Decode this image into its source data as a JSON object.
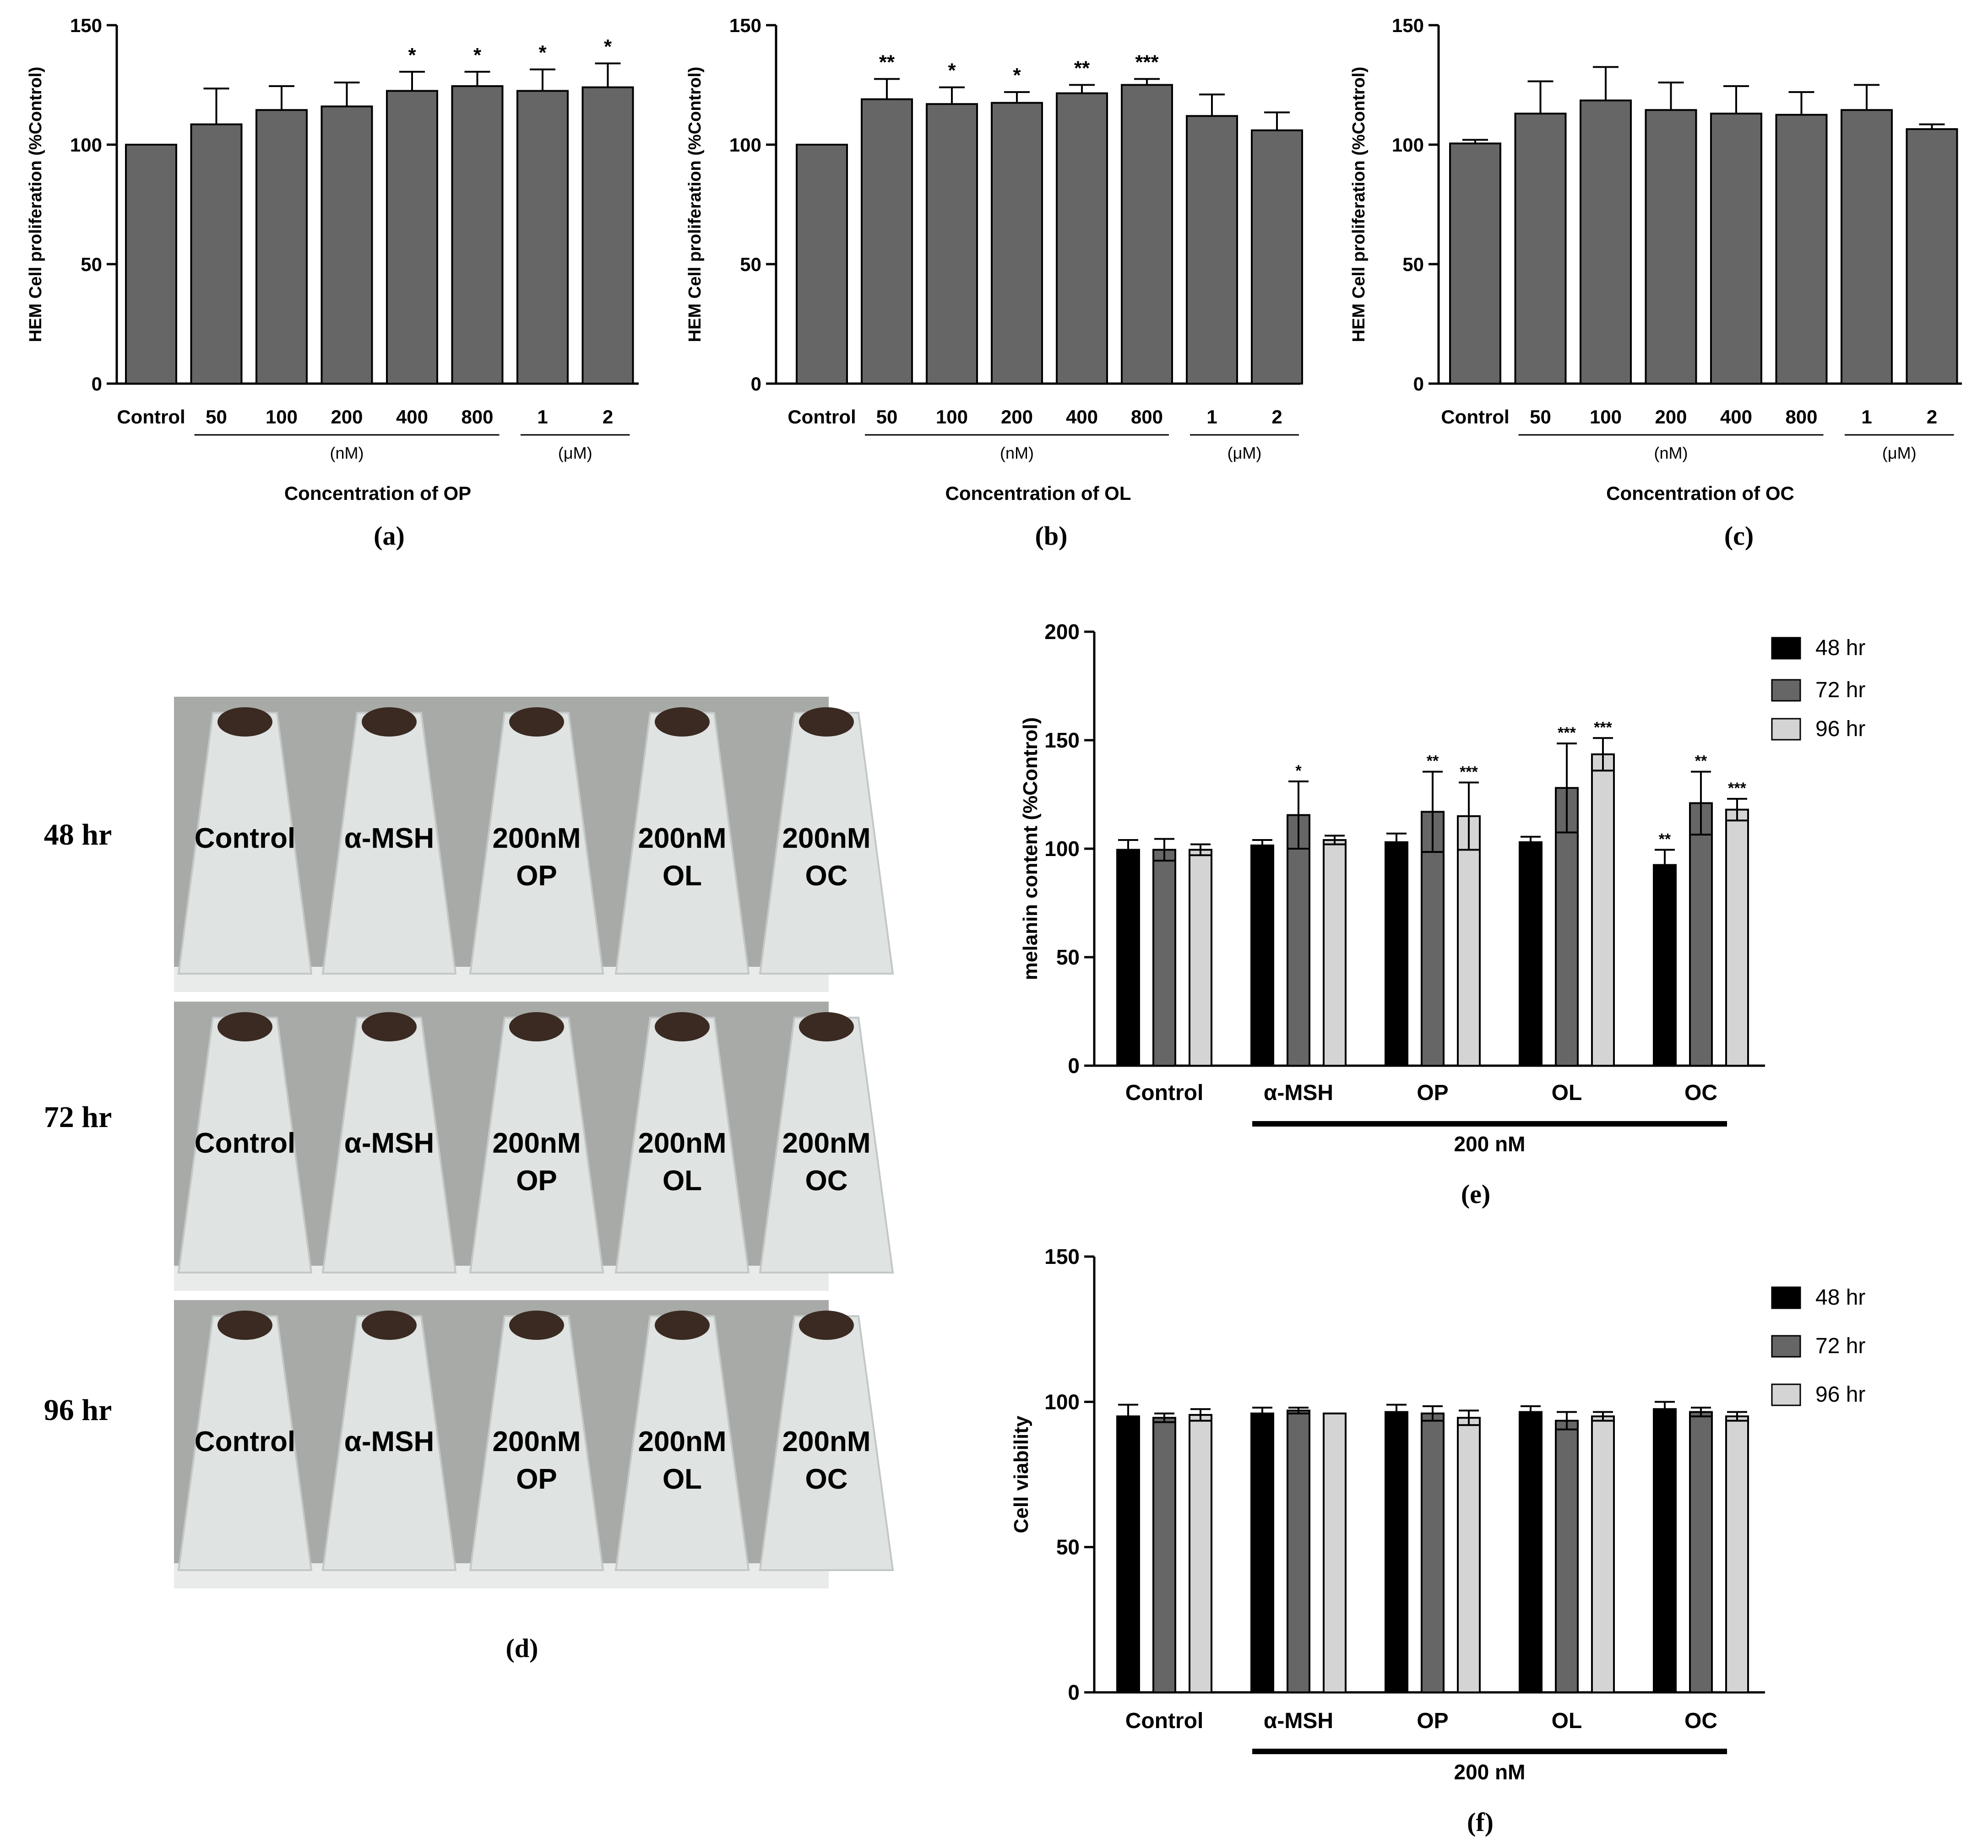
{
  "colors": {
    "bar": "#666666",
    "black": "#000000",
    "dark_grey": "#666666",
    "light_grey": "#d4d4d4",
    "photo_bg": "#a8aaa8",
    "tube": "#dfe3e2",
    "pellet": "#3a2a22"
  },
  "panels": {
    "a": "(a)",
    "b": "(b)",
    "c": "(c)",
    "d": "(d)",
    "e": "(e)",
    "f": "(f)"
  },
  "chart_data": [
    {
      "id": "a",
      "type": "bar",
      "ylabel": "HEM Cell proliferation (%Control)",
      "xlabel": "Concentration of OP",
      "ylim": [
        0,
        150
      ],
      "yticks": [
        "0",
        "50",
        "100",
        "150"
      ],
      "categories": [
        "Control",
        "50",
        "100",
        "200",
        "400",
        "800",
        "1",
        "2"
      ],
      "values": [
        100,
        108.5,
        114.5,
        116,
        122.5,
        124.5,
        122.5,
        124
      ],
      "errors": [
        0,
        15,
        10,
        10,
        8,
        6,
        9,
        10
      ],
      "significance": [
        "",
        "",
        "",
        "",
        "*",
        "*",
        "*",
        "*"
      ],
      "unit_groups": [
        {
          "label": "(nM)",
          "from": 1,
          "to": 5
        },
        {
          "label": "(μM)",
          "from": 6,
          "to": 7
        }
      ]
    },
    {
      "id": "b",
      "type": "bar",
      "ylabel": "HEM Cell proliferation (%Control)",
      "xlabel": "Concentration of OL",
      "ylim": [
        0,
        150
      ],
      "yticks": [
        "0",
        "50",
        "100",
        "150"
      ],
      "categories": [
        "Control",
        "50",
        "100",
        "200",
        "400",
        "800",
        "1",
        "2"
      ],
      "values": [
        100,
        119,
        117,
        117.5,
        121.5,
        125,
        112,
        106
      ],
      "errors": [
        0,
        8.5,
        7,
        4.5,
        3.5,
        2.5,
        9,
        7.5
      ],
      "significance": [
        "",
        "**",
        "*",
        "*",
        "**",
        "***",
        "",
        ""
      ],
      "unit_groups": [
        {
          "label": "(nM)",
          "from": 1,
          "to": 5
        },
        {
          "label": "(μM)",
          "from": 6,
          "to": 7
        }
      ]
    },
    {
      "id": "c",
      "type": "bar",
      "ylabel": "HEM Cell proliferation (%Control)",
      "xlabel": "Concentration of OC",
      "ylim": [
        0,
        150
      ],
      "yticks": [
        "0",
        "50",
        "100",
        "150"
      ],
      "categories": [
        "Control",
        "50",
        "100",
        "200",
        "400",
        "800",
        "1",
        "2"
      ],
      "values": [
        100.5,
        113,
        118.5,
        114.5,
        113,
        112.5,
        114.5,
        106.5
      ],
      "errors": [
        1.5,
        13.5,
        14,
        11.5,
        11.5,
        9.5,
        10.5,
        2
      ],
      "significance": [
        "",
        "",
        "",
        "",
        "",
        "",
        "",
        ""
      ],
      "unit_groups": [
        {
          "label": "(nM)",
          "from": 1,
          "to": 5
        },
        {
          "label": "(μM)",
          "from": 6,
          "to": 7
        }
      ]
    },
    {
      "id": "e",
      "type": "bar",
      "ylabel": "melanin content (%Control)",
      "ylim": [
        0,
        200
      ],
      "yticks": [
        "0",
        "50",
        "100",
        "150",
        "200"
      ],
      "categories": [
        "Control",
        "α-MSH",
        "OP",
        "OL",
        "OC"
      ],
      "group_label": "200 nM",
      "legend": [
        "48 hr",
        "72 hr",
        "96 hr"
      ],
      "series": [
        {
          "name": "48 hr",
          "values": [
            99.5,
            101.5,
            103,
            103,
            92.5
          ],
          "errors": [
            4.5,
            2.5,
            4,
            2.5,
            7
          ],
          "significance": [
            "",
            "",
            "",
            "",
            "**"
          ]
        },
        {
          "name": "72 hr",
          "values": [
            99.5,
            115.5,
            117,
            128,
            121
          ],
          "errors": [
            5,
            15.5,
            18.5,
            20.5,
            14.5
          ],
          "significance": [
            "",
            "*",
            "**",
            "***",
            "**"
          ]
        },
        {
          "name": "96 hr",
          "values": [
            99.5,
            104,
            115,
            143.5,
            118
          ],
          "errors": [
            2.5,
            2,
            15.5,
            7.5,
            5
          ],
          "significance": [
            "",
            "",
            "***",
            "***",
            "***"
          ]
        }
      ]
    },
    {
      "id": "f",
      "type": "bar",
      "ylabel": "Cell viability",
      "ylim": [
        0,
        150
      ],
      "yticks": [
        "0",
        "50",
        "100",
        "150"
      ],
      "categories": [
        "Control",
        "α-MSH",
        "OP",
        "OL",
        "OC"
      ],
      "group_label": "200 nM",
      "legend": [
        "48 hr",
        "72 hr",
        "96 hr"
      ],
      "series": [
        {
          "name": "48 hr",
          "values": [
            95,
            96,
            96.5,
            96.5,
            97.5
          ],
          "errors": [
            4,
            2,
            2.5,
            2,
            2.5
          ],
          "significance": [
            "",
            "",
            "",
            "",
            ""
          ]
        },
        {
          "name": "72 hr",
          "values": [
            94.5,
            97,
            96,
            93.5,
            96.5
          ],
          "errors": [
            1.5,
            1,
            2.5,
            3,
            1.5
          ],
          "significance": [
            "",
            "",
            "",
            "",
            ""
          ]
        },
        {
          "name": "96 hr",
          "values": [
            95.5,
            96,
            94.5,
            95,
            95
          ],
          "errors": [
            2,
            0,
            2.5,
            1.5,
            1.5
          ],
          "significance": [
            "",
            "",
            "",
            "",
            ""
          ]
        }
      ]
    }
  ],
  "photo": {
    "rows": [
      "48 hr",
      "72 hr",
      "96 hr"
    ],
    "tubes": [
      {
        "line1": "Control",
        "line2": ""
      },
      {
        "line1": "α-MSH",
        "line2": ""
      },
      {
        "line1": "200nM",
        "line2": "OP"
      },
      {
        "line1": "200nM",
        "line2": "OL"
      },
      {
        "line1": "200nM",
        "line2": "OC"
      }
    ]
  }
}
